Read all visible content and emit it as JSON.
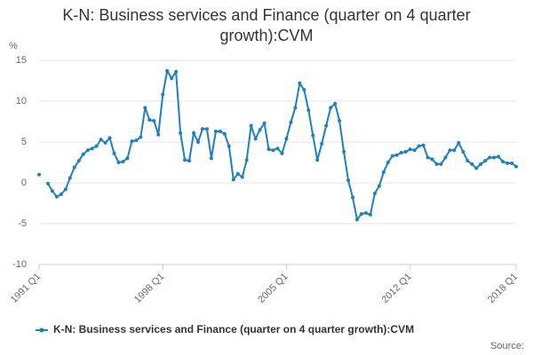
{
  "chart_data": {
    "type": "line",
    "title": "K-N: Business services and Finance (quarter on 4 quarter growth):CVM",
    "y_label": "%",
    "source": "Source:",
    "categories": [
      "1991 Q1",
      null,
      null,
      null,
      null,
      null,
      null,
      null,
      null,
      null,
      null,
      null,
      null,
      null,
      null,
      null,
      null,
      null,
      null,
      null,
      null,
      null,
      null,
      null,
      null,
      null,
      null,
      null,
      "1998 Q1",
      null,
      null,
      null,
      null,
      null,
      null,
      null,
      null,
      null,
      null,
      null,
      null,
      null,
      null,
      null,
      null,
      null,
      null,
      null,
      null,
      null,
      null,
      null,
      null,
      null,
      null,
      null,
      "2005 Q1",
      null,
      null,
      null,
      null,
      null,
      null,
      null,
      null,
      null,
      null,
      null,
      null,
      null,
      null,
      null,
      null,
      null,
      null,
      null,
      null,
      null,
      null,
      null,
      null,
      null,
      null,
      null,
      "2012 Q1",
      null,
      null,
      null,
      null,
      null,
      null,
      null,
      null,
      null,
      null,
      null,
      null,
      null,
      null,
      null,
      null,
      null,
      null,
      null,
      null,
      null,
      null,
      null,
      "2018 Q1"
    ],
    "series": [
      {
        "name": "K-N: Business services and Finance (quarter on 4 quarter growth):CVM",
        "color": "#1f80bd",
        "values": [
          1.0,
          null,
          -0.1,
          -1.0,
          -1.7,
          -1.4,
          -0.8,
          0.6,
          1.9,
          2.7,
          3.5,
          4.0,
          4.2,
          4.5,
          5.3,
          4.9,
          5.5,
          3.6,
          2.5,
          2.6,
          3.0,
          5.1,
          5.2,
          5.6,
          9.2,
          7.7,
          7.6,
          5.9,
          10.8,
          13.7,
          12.8,
          13.6,
          6.1,
          2.8,
          2.7,
          6.1,
          5.0,
          6.6,
          6.6,
          3.0,
          6.3,
          6.3,
          6.0,
          4.5,
          0.4,
          1.1,
          0.7,
          2.8,
          7.0,
          5.4,
          6.5,
          7.3,
          4.1,
          4.0,
          4.2,
          3.6,
          5.4,
          7.4,
          9.2,
          12.2,
          11.4,
          8.9,
          5.8,
          2.8,
          4.8,
          7.0,
          9.2,
          9.7,
          7.6,
          3.8,
          0.3,
          -1.8,
          -4.5,
          -3.8,
          -3.7,
          -3.9,
          -1.3,
          -0.4,
          1.3,
          2.5,
          3.3,
          3.4,
          3.7,
          3.8,
          4.1,
          4.0,
          4.5,
          4.6,
          3.1,
          2.9,
          2.3,
          2.3,
          3.1,
          4.0,
          4.0,
          4.9,
          3.8,
          2.7,
          2.3,
          1.8,
          2.3,
          2.7,
          3.1,
          3.1,
          3.2,
          2.6,
          2.4,
          2.4,
          2.0
        ]
      }
    ],
    "ylim": [
      -10,
      15
    ],
    "yticks": [
      -10,
      -5,
      0,
      5,
      10,
      15
    ],
    "grid": true
  }
}
